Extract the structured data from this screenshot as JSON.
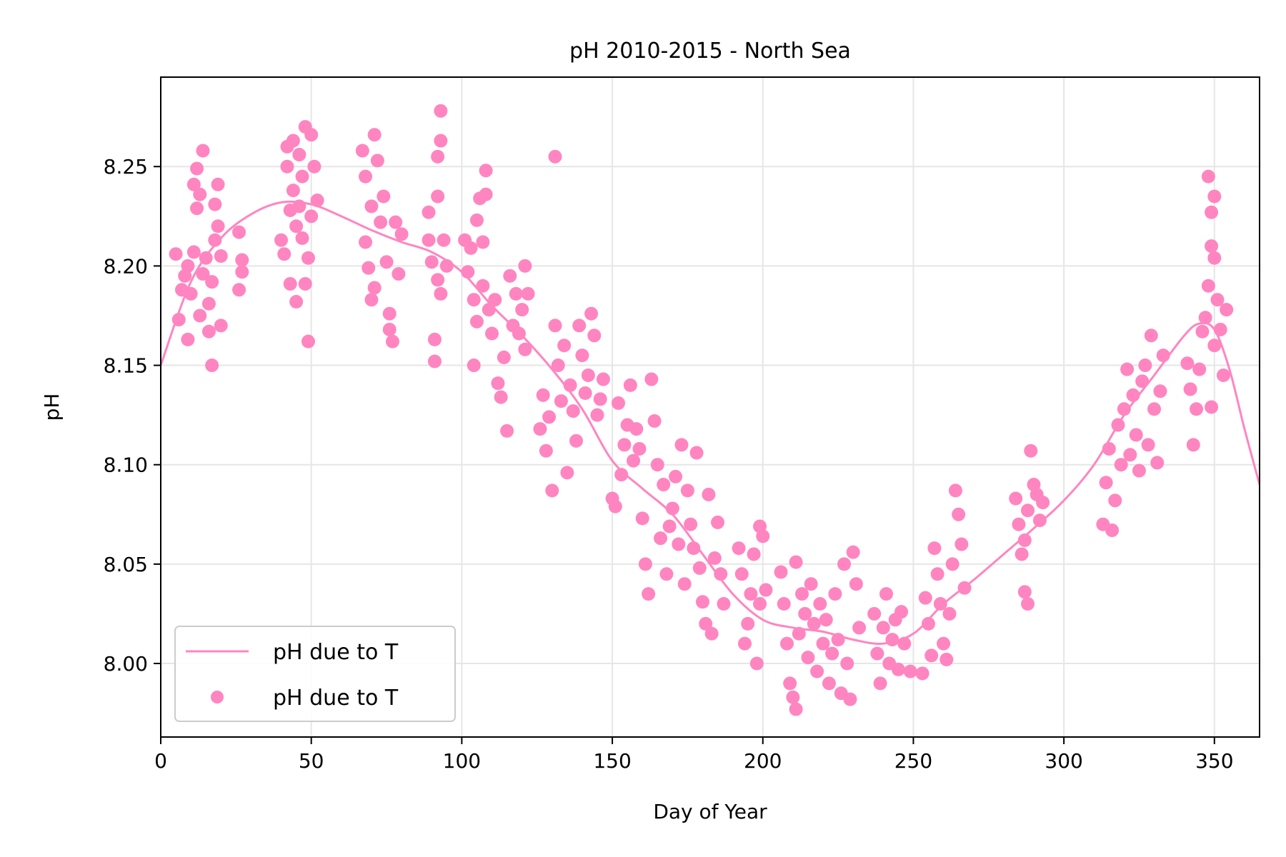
{
  "chart_data": {
    "type": "scatter",
    "title": "pH 2010-2015 - North Sea",
    "xlabel": "Day of Year",
    "ylabel": "pH",
    "xlim": [
      0,
      365
    ],
    "ylim": [
      7.963,
      8.295
    ],
    "xticks": [
      0,
      50,
      100,
      150,
      200,
      250,
      300,
      350
    ],
    "yticks": [
      8.0,
      8.05,
      8.1,
      8.15,
      8.2,
      8.25
    ],
    "ytick_labels": [
      "8.00",
      "8.05",
      "8.10",
      "8.15",
      "8.20",
      "8.25"
    ],
    "grid": true,
    "legend_position": "lower-left",
    "color": "#ff85c0",
    "series": [
      {
        "name": "pH due to T",
        "kind": "line",
        "x": [
          0,
          10,
          20,
          30,
          40,
          50,
          60,
          70,
          80,
          90,
          100,
          110,
          120,
          130,
          140,
          150,
          160,
          170,
          180,
          190,
          200,
          210,
          220,
          230,
          240,
          250,
          260,
          270,
          280,
          290,
          300,
          310,
          320,
          330,
          340,
          345,
          350,
          355,
          360,
          365
        ],
        "y": [
          8.15,
          8.192,
          8.214,
          8.226,
          8.232,
          8.231,
          8.225,
          8.218,
          8.212,
          8.207,
          8.197,
          8.18,
          8.165,
          8.148,
          8.128,
          8.102,
          8.088,
          8.075,
          8.055,
          8.035,
          8.022,
          8.018,
          8.016,
          8.012,
          8.01,
          8.015,
          8.03,
          8.042,
          8.055,
          8.068,
          8.082,
          8.1,
          8.125,
          8.145,
          8.165,
          8.171,
          8.168,
          8.148,
          8.118,
          8.09
        ]
      },
      {
        "name": "pH due to T",
        "kind": "scatter",
        "points": [
          [
            5,
            8.206
          ],
          [
            6,
            8.173
          ],
          [
            7,
            8.188
          ],
          [
            8,
            8.195
          ],
          [
            9,
            8.163
          ],
          [
            9,
            8.2
          ],
          [
            10,
            8.186
          ],
          [
            11,
            8.207
          ],
          [
            11,
            8.241
          ],
          [
            12,
            8.229
          ],
          [
            12,
            8.249
          ],
          [
            13,
            8.236
          ],
          [
            13,
            8.175
          ],
          [
            14,
            8.258
          ],
          [
            14,
            8.196
          ],
          [
            15,
            8.204
          ],
          [
            16,
            8.167
          ],
          [
            16,
            8.181
          ],
          [
            17,
            8.15
          ],
          [
            17,
            8.192
          ],
          [
            18,
            8.231
          ],
          [
            18,
            8.213
          ],
          [
            19,
            8.22
          ],
          [
            19,
            8.241
          ],
          [
            20,
            8.205
          ],
          [
            20,
            8.17
          ],
          [
            26,
            8.217
          ],
          [
            26,
            8.188
          ],
          [
            27,
            8.203
          ],
          [
            27,
            8.197
          ],
          [
            40,
            8.213
          ],
          [
            41,
            8.206
          ],
          [
            42,
            8.26
          ],
          [
            42,
            8.25
          ],
          [
            43,
            8.191
          ],
          [
            43,
            8.228
          ],
          [
            44,
            8.263
          ],
          [
            44,
            8.238
          ],
          [
            45,
            8.182
          ],
          [
            45,
            8.22
          ],
          [
            46,
            8.256
          ],
          [
            46,
            8.23
          ],
          [
            47,
            8.214
          ],
          [
            47,
            8.245
          ],
          [
            48,
            8.27
          ],
          [
            48,
            8.191
          ],
          [
            49,
            8.204
          ],
          [
            49,
            8.162
          ],
          [
            50,
            8.266
          ],
          [
            50,
            8.225
          ],
          [
            51,
            8.25
          ],
          [
            52,
            8.233
          ],
          [
            67,
            8.258
          ],
          [
            68,
            8.245
          ],
          [
            68,
            8.212
          ],
          [
            69,
            8.199
          ],
          [
            70,
            8.23
          ],
          [
            70,
            8.183
          ],
          [
            71,
            8.266
          ],
          [
            71,
            8.189
          ],
          [
            72,
            8.253
          ],
          [
            73,
            8.222
          ],
          [
            74,
            8.235
          ],
          [
            75,
            8.202
          ],
          [
            76,
            8.176
          ],
          [
            76,
            8.168
          ],
          [
            77,
            8.162
          ],
          [
            78,
            8.222
          ],
          [
            79,
            8.196
          ],
          [
            80,
            8.216
          ],
          [
            89,
            8.227
          ],
          [
            89,
            8.213
          ],
          [
            90,
            8.202
          ],
          [
            91,
            8.163
          ],
          [
            91,
            8.152
          ],
          [
            92,
            8.193
          ],
          [
            92,
            8.255
          ],
          [
            92,
            8.235
          ],
          [
            93,
            8.278
          ],
          [
            93,
            8.263
          ],
          [
            93,
            8.186
          ],
          [
            94,
            8.213
          ],
          [
            95,
            8.2
          ],
          [
            101,
            8.213
          ],
          [
            102,
            8.197
          ],
          [
            103,
            8.209
          ],
          [
            104,
            8.15
          ],
          [
            104,
            8.183
          ],
          [
            105,
            8.223
          ],
          [
            105,
            8.172
          ],
          [
            106,
            8.234
          ],
          [
            107,
            8.212
          ],
          [
            107,
            8.19
          ],
          [
            108,
            8.248
          ],
          [
            108,
            8.236
          ],
          [
            109,
            8.178
          ],
          [
            110,
            8.166
          ],
          [
            111,
            8.183
          ],
          [
            112,
            8.141
          ],
          [
            113,
            8.134
          ],
          [
            114,
            8.154
          ],
          [
            115,
            8.117
          ],
          [
            116,
            8.195
          ],
          [
            117,
            8.17
          ],
          [
            118,
            8.186
          ],
          [
            119,
            8.166
          ],
          [
            120,
            8.178
          ],
          [
            121,
            8.158
          ],
          [
            121,
            8.2
          ],
          [
            122,
            8.186
          ],
          [
            126,
            8.118
          ],
          [
            127,
            8.135
          ],
          [
            128,
            8.107
          ],
          [
            129,
            8.124
          ],
          [
            130,
            8.087
          ],
          [
            131,
            8.255
          ],
          [
            131,
            8.17
          ],
          [
            132,
            8.15
          ],
          [
            133,
            8.132
          ],
          [
            134,
            8.16
          ],
          [
            135,
            8.096
          ],
          [
            136,
            8.14
          ],
          [
            137,
            8.127
          ],
          [
            138,
            8.112
          ],
          [
            139,
            8.17
          ],
          [
            140,
            8.155
          ],
          [
            141,
            8.136
          ],
          [
            142,
            8.145
          ],
          [
            143,
            8.176
          ],
          [
            144,
            8.165
          ],
          [
            145,
            8.125
          ],
          [
            146,
            8.133
          ],
          [
            147,
            8.143
          ],
          [
            150,
            8.083
          ],
          [
            151,
            8.079
          ],
          [
            152,
            8.131
          ],
          [
            153,
            8.095
          ],
          [
            154,
            8.11
          ],
          [
            155,
            8.12
          ],
          [
            156,
            8.14
          ],
          [
            157,
            8.102
          ],
          [
            158,
            8.118
          ],
          [
            159,
            8.108
          ],
          [
            160,
            8.073
          ],
          [
            161,
            8.05
          ],
          [
            162,
            8.035
          ],
          [
            163,
            8.143
          ],
          [
            164,
            8.122
          ],
          [
            165,
            8.1
          ],
          [
            166,
            8.063
          ],
          [
            167,
            8.09
          ],
          [
            168,
            8.045
          ],
          [
            169,
            8.069
          ],
          [
            170,
            8.078
          ],
          [
            171,
            8.094
          ],
          [
            172,
            8.06
          ],
          [
            173,
            8.11
          ],
          [
            174,
            8.04
          ],
          [
            175,
            8.087
          ],
          [
            176,
            8.07
          ],
          [
            177,
            8.058
          ],
          [
            178,
            8.106
          ],
          [
            179,
            8.048
          ],
          [
            180,
            8.031
          ],
          [
            181,
            8.02
          ],
          [
            182,
            8.085
          ],
          [
            183,
            8.015
          ],
          [
            184,
            8.053
          ],
          [
            185,
            8.071
          ],
          [
            186,
            8.045
          ],
          [
            187,
            8.03
          ],
          [
            192,
            8.058
          ],
          [
            193,
            8.045
          ],
          [
            194,
            8.01
          ],
          [
            195,
            8.02
          ],
          [
            196,
            8.035
          ],
          [
            197,
            8.055
          ],
          [
            198,
            8.0
          ],
          [
            199,
            8.03
          ],
          [
            199,
            8.069
          ],
          [
            200,
            8.064
          ],
          [
            201,
            8.037
          ],
          [
            206,
            8.046
          ],
          [
            207,
            8.03
          ],
          [
            208,
            8.01
          ],
          [
            209,
            7.99
          ],
          [
            210,
            7.983
          ],
          [
            211,
            8.051
          ],
          [
            211,
            7.977
          ],
          [
            212,
            8.015
          ],
          [
            213,
            8.035
          ],
          [
            214,
            8.025
          ],
          [
            215,
            8.003
          ],
          [
            216,
            8.04
          ],
          [
            217,
            8.02
          ],
          [
            218,
            7.996
          ],
          [
            219,
            8.03
          ],
          [
            220,
            8.01
          ],
          [
            221,
            8.022
          ],
          [
            222,
            7.99
          ],
          [
            223,
            8.005
          ],
          [
            224,
            8.035
          ],
          [
            225,
            8.012
          ],
          [
            226,
            7.985
          ],
          [
            227,
            8.05
          ],
          [
            228,
            8.0
          ],
          [
            229,
            7.982
          ],
          [
            230,
            8.056
          ],
          [
            231,
            8.04
          ],
          [
            232,
            8.018
          ],
          [
            237,
            8.025
          ],
          [
            238,
            8.005
          ],
          [
            239,
            7.99
          ],
          [
            240,
            8.018
          ],
          [
            241,
            8.035
          ],
          [
            242,
            8.0
          ],
          [
            243,
            8.012
          ],
          [
            244,
            8.022
          ],
          [
            245,
            7.997
          ],
          [
            246,
            8.026
          ],
          [
            247,
            8.01
          ],
          [
            249,
            7.996
          ],
          [
            253,
            7.995
          ],
          [
            254,
            8.033
          ],
          [
            255,
            8.02
          ],
          [
            256,
            8.004
          ],
          [
            257,
            8.058
          ],
          [
            258,
            8.045
          ],
          [
            259,
            8.03
          ],
          [
            260,
            8.01
          ],
          [
            261,
            8.002
          ],
          [
            262,
            8.025
          ],
          [
            263,
            8.05
          ],
          [
            264,
            8.087
          ],
          [
            265,
            8.075
          ],
          [
            266,
            8.06
          ],
          [
            267,
            8.038
          ],
          [
            284,
            8.083
          ],
          [
            285,
            8.07
          ],
          [
            286,
            8.055
          ],
          [
            287,
            8.036
          ],
          [
            287,
            8.062
          ],
          [
            288,
            8.03
          ],
          [
            288,
            8.077
          ],
          [
            289,
            8.107
          ],
          [
            290,
            8.09
          ],
          [
            291,
            8.085
          ],
          [
            292,
            8.072
          ],
          [
            293,
            8.081
          ],
          [
            313,
            8.07
          ],
          [
            314,
            8.091
          ],
          [
            315,
            8.108
          ],
          [
            316,
            8.067
          ],
          [
            317,
            8.082
          ],
          [
            318,
            8.12
          ],
          [
            319,
            8.1
          ],
          [
            320,
            8.128
          ],
          [
            321,
            8.148
          ],
          [
            322,
            8.105
          ],
          [
            323,
            8.135
          ],
          [
            324,
            8.115
          ],
          [
            325,
            8.097
          ],
          [
            326,
            8.142
          ],
          [
            327,
            8.15
          ],
          [
            328,
            8.11
          ],
          [
            329,
            8.165
          ],
          [
            330,
            8.128
          ],
          [
            331,
            8.101
          ],
          [
            332,
            8.137
          ],
          [
            333,
            8.155
          ],
          [
            341,
            8.151
          ],
          [
            342,
            8.138
          ],
          [
            343,
            8.11
          ],
          [
            344,
            8.128
          ],
          [
            345,
            8.148
          ],
          [
            346,
            8.167
          ],
          [
            347,
            8.174
          ],
          [
            348,
            8.245
          ],
          [
            348,
            8.19
          ],
          [
            349,
            8.129
          ],
          [
            349,
            8.21
          ],
          [
            349,
            8.227
          ],
          [
            350,
            8.235
          ],
          [
            350,
            8.16
          ],
          [
            350,
            8.204
          ],
          [
            351,
            8.183
          ],
          [
            352,
            8.168
          ],
          [
            353,
            8.145
          ],
          [
            354,
            8.178
          ]
        ]
      }
    ]
  }
}
